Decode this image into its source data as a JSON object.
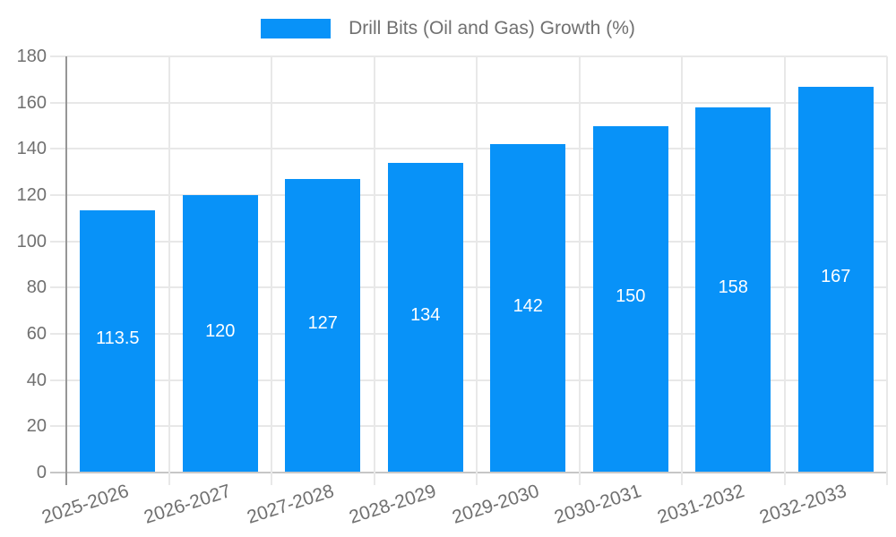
{
  "legend": {
    "label": "Drill Bits (Oil and Gas) Growth (%)"
  },
  "colors": {
    "bar": "#0892f8",
    "grid": "#e8e8e8",
    "axis_y": "#969696",
    "axis_x": "#c6c6c6",
    "text": "#707070",
    "bar_label_text": "#ffffff"
  },
  "chart_data": {
    "type": "bar",
    "title": "",
    "legend_entries": [
      "Drill Bits (Oil and Gas) Growth (%)"
    ],
    "legend_position": "top-center",
    "categories": [
      "2025-2026",
      "2026-2027",
      "2027-2028",
      "2028-2029",
      "2029-2030",
      "2030-2031",
      "2031-2032",
      "2032-2033"
    ],
    "series": [
      {
        "name": "Drill Bits (Oil and Gas) Growth (%)",
        "values": [
          113.5,
          120,
          127,
          134,
          142,
          150,
          158,
          167
        ]
      }
    ],
    "data_labels": [
      "113.5",
      "120",
      "127",
      "134",
      "142",
      "150",
      "158",
      "167"
    ],
    "xlabel": "",
    "ylabel": "",
    "ylim": [
      0,
      180
    ],
    "ytick_step": 20,
    "ytick_labels": [
      "0",
      "20",
      "40",
      "60",
      "80",
      "100",
      "120",
      "140",
      "160",
      "180"
    ],
    "grid": true,
    "x_label_rotation_deg": -18
  }
}
